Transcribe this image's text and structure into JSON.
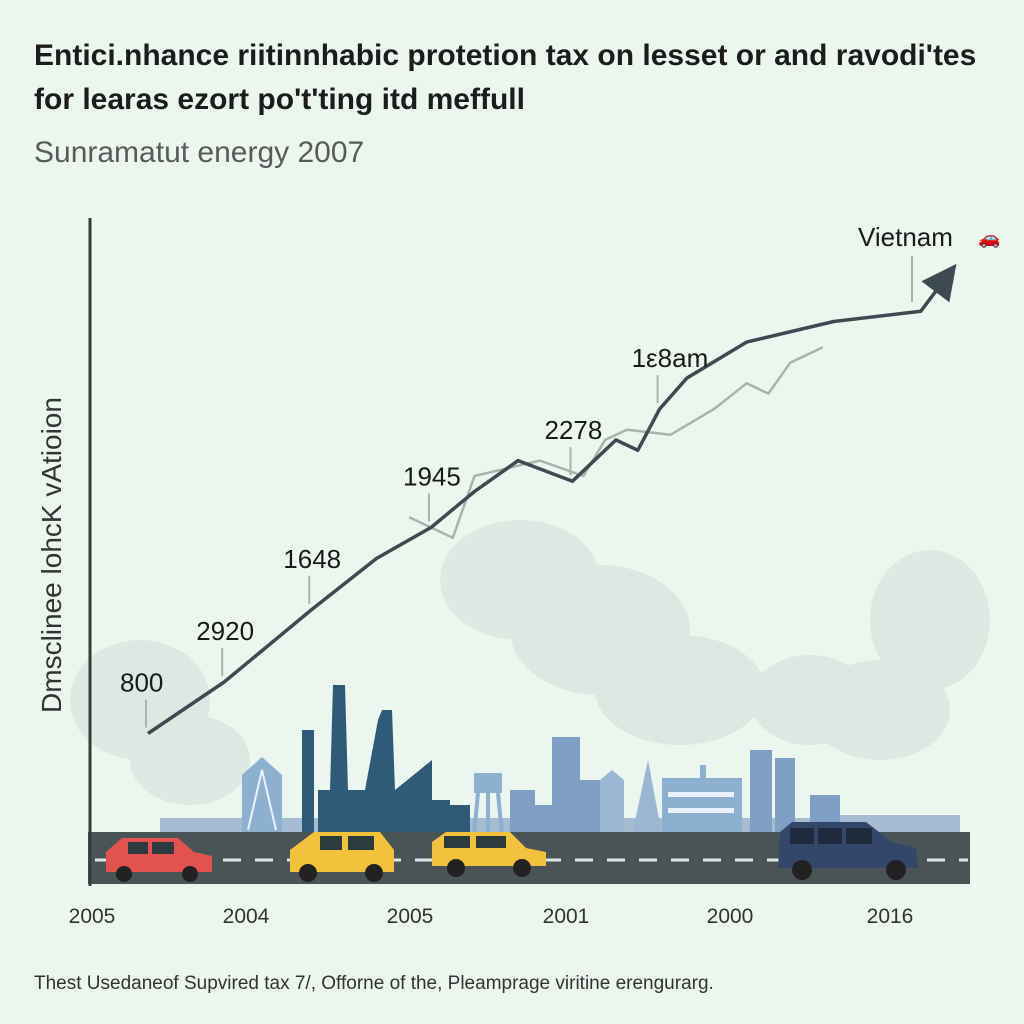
{
  "chart_data": {
    "type": "line",
    "title": "Entici.nhance riitinnhabic protetion tax on lesset or and ravodi'tes for learas ezort po't'ting itd meffull",
    "subtitle": "Sunramatut energy 2007",
    "ylabel": "Dmsclinee lohcK vAtioion",
    "xlabel": "",
    "footer": "Thest Usedaneof Supvired tax 7/, Offorne of the, Pleamprage viritine erengurarg.",
    "x_ticks": [
      "2005",
      "2004",
      "2005",
      "2001",
      "2000",
      "2016"
    ],
    "point_labels": [
      "800",
      "2920",
      "1648",
      "1945",
      "2278",
      "1ε8am"
    ],
    "end_label": "Vietnam",
    "ylim": [
      0,
      100
    ],
    "series": [
      {
        "name": "primary",
        "color": "#3e4a52",
        "x": [
          0,
          7,
          15,
          21,
          26,
          30,
          34,
          39,
          43,
          45,
          47,
          49.5,
          55,
          63,
          71,
          73.5
        ],
        "values": [
          10,
          20,
          34,
          44,
          50,
          57,
          63,
          59,
          67,
          65,
          73,
          79,
          86,
          90,
          92,
          99
        ]
      },
      {
        "name": "secondary",
        "color": "#a9b2ac",
        "x": [
          24,
          28,
          30,
          36,
          40,
          42,
          44,
          48,
          52,
          55,
          57,
          59,
          62
        ],
        "values": [
          52,
          48,
          60,
          63,
          60,
          67,
          69,
          68,
          73,
          78,
          76,
          82,
          85
        ]
      }
    ]
  },
  "colors": {
    "background": "#ebf7ee",
    "line": "#3e4a52",
    "factory": "#2f5a78",
    "city": "#7f9fc4",
    "road": "#4a5456",
    "car_red": "#e2524e",
    "car_yellow": "#f2c23c",
    "car_navy": "#33476a"
  }
}
